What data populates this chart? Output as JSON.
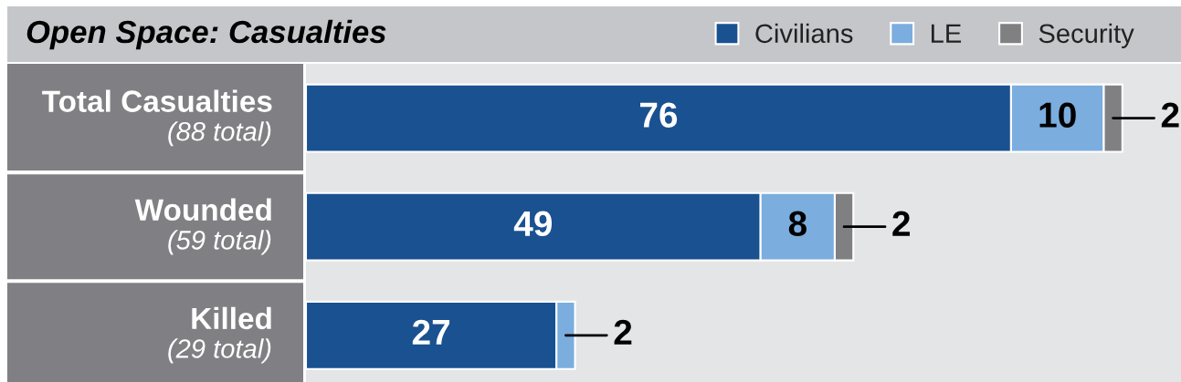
{
  "chart_data": {
    "type": "bar",
    "orientation": "horizontal",
    "stacked": true,
    "title": "Open Space: Casualties",
    "categories": [
      "Total Casualties",
      "Wounded",
      "Killed"
    ],
    "totals": [
      "(88 total)",
      "(59 total)",
      "(29 total)"
    ],
    "series": [
      {
        "name": "Civilians",
        "color": "#1a5190",
        "values": [
          76,
          49,
          27
        ]
      },
      {
        "name": "LE",
        "color": "#7badde",
        "values": [
          10,
          8,
          2
        ]
      },
      {
        "name": "Security",
        "color": "#808083",
        "values": [
          2,
          2,
          null
        ]
      }
    ],
    "data_labels": true,
    "legend": "top right",
    "tick_labels": "y"
  }
}
